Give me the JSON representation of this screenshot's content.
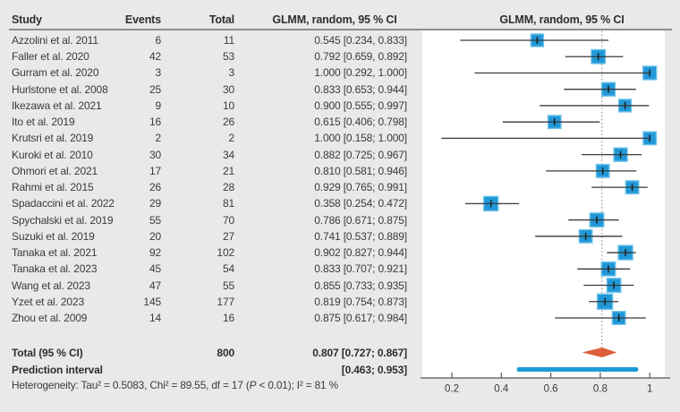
{
  "header": {
    "study": "Study",
    "events": "Events",
    "total": "Total",
    "ci": "GLMM, random, 95 % CI",
    "plot": "GLMM, random, 95 % CI"
  },
  "chart_data": {
    "type": "forest",
    "x_axis": {
      "ticks": [
        0.2,
        0.4,
        0.6,
        0.8,
        1
      ],
      "tick_labels": [
        "0.2",
        "0.4",
        "0.6",
        "0.8",
        "1"
      ],
      "range": [
        0.08,
        1.06
      ]
    },
    "reference_line": 0.807,
    "studies": [
      {
        "study": "Azzolini et al. 2011",
        "events": "6",
        "total": "11",
        "ci_text": "0.545 [0.234, 0.833]",
        "est": 0.545,
        "lo": 0.234,
        "hi": 0.833,
        "sq": 14
      },
      {
        "study": "Faller et al. 2020",
        "events": "42",
        "total": "53",
        "ci_text": "0.792 [0.659, 0.892]",
        "est": 0.792,
        "lo": 0.659,
        "hi": 0.892,
        "sq": 15.5
      },
      {
        "study": "Gurram et al. 2020",
        "events": "3",
        "total": "3",
        "ci_text": "1.000 [0.292, 1.000]",
        "est": 1.0,
        "lo": 0.292,
        "hi": 1.0,
        "sq": 15
      },
      {
        "study": "Hurlstone et al. 2008",
        "events": "25",
        "total": "30",
        "ci_text": "0.833 [0.653; 0.944]",
        "est": 0.833,
        "lo": 0.653,
        "hi": 0.944,
        "sq": 15
      },
      {
        "study": "Ikezawa et al. 2021",
        "events": "9",
        "total": "10",
        "ci_text": "0.900 [0.555; 0.997]",
        "est": 0.9,
        "lo": 0.555,
        "hi": 0.997,
        "sq": 14
      },
      {
        "study": "Ito et al. 2019",
        "events": "16",
        "total": "26",
        "ci_text": "0.615 [0.406; 0.798]",
        "est": 0.615,
        "lo": 0.406,
        "hi": 0.798,
        "sq": 14.5
      },
      {
        "study": "Krutsri et al. 2019",
        "events": "2",
        "total": "2",
        "ci_text": "1.000 [0.158; 1.000]",
        "est": 1.0,
        "lo": 0.158,
        "hi": 1.0,
        "sq": 14.5
      },
      {
        "study": "Kuroki et al. 2010",
        "events": "30",
        "total": "34",
        "ci_text": "0.882 [0.725; 0.967]",
        "est": 0.882,
        "lo": 0.725,
        "hi": 0.967,
        "sq": 15
      },
      {
        "study": "Ohmori et al. 2021",
        "events": "17",
        "total": "21",
        "ci_text": "0.810 [0.581; 0.946]",
        "est": 0.81,
        "lo": 0.581,
        "hi": 0.946,
        "sq": 14.5
      },
      {
        "study": "Rahmi et al. 2015",
        "events": "26",
        "total": "28",
        "ci_text": "0.929 [0.765; 0.991]",
        "est": 0.929,
        "lo": 0.765,
        "hi": 0.991,
        "sq": 14.5
      },
      {
        "study": "Spadaccini et al. 2022",
        "events": "29",
        "total": "81",
        "ci_text": "0.358 [0.254; 0.472]",
        "est": 0.358,
        "lo": 0.254,
        "hi": 0.472,
        "sq": 16
      },
      {
        "study": "Spychalski et al. 2019",
        "events": "55",
        "total": "70",
        "ci_text": "0.786 [0.671; 0.875]",
        "est": 0.786,
        "lo": 0.671,
        "hi": 0.875,
        "sq": 15.5
      },
      {
        "study": "Suzuki et al. 2019",
        "events": "20",
        "total": "27",
        "ci_text": "0.741 [0.537; 0.889]",
        "est": 0.741,
        "lo": 0.537,
        "hi": 0.889,
        "sq": 14.5
      },
      {
        "study": "Tanaka et al. 2021",
        "events": "92",
        "total": "102",
        "ci_text": "0.902 [0.827; 0.944]",
        "est": 0.902,
        "lo": 0.827,
        "hi": 0.944,
        "sq": 16
      },
      {
        "study": "Tanaka et al. 2023",
        "events": "45",
        "total": "54",
        "ci_text": "0.833 [0.707; 0.921]",
        "est": 0.833,
        "lo": 0.707,
        "hi": 0.921,
        "sq": 15.5
      },
      {
        "study": "Wang et al. 2023",
        "events": "47",
        "total": "55",
        "ci_text": "0.855 [0.733; 0.935]",
        "est": 0.855,
        "lo": 0.733,
        "hi": 0.935,
        "sq": 15.5
      },
      {
        "study": "Yzet et al. 2023",
        "events": "145",
        "total": "177",
        "ci_text": "0.819 [0.754; 0.873]",
        "est": 0.819,
        "lo": 0.754,
        "hi": 0.873,
        "sq": 17
      },
      {
        "study": "Zhou et al. 2009",
        "events": "14",
        "total": "16",
        "ci_text": "0.875 [0.617; 0.984]",
        "est": 0.875,
        "lo": 0.617,
        "hi": 0.984,
        "sq": 14.5
      }
    ],
    "total_row": {
      "label": "Total (95 % CI)",
      "total": "800",
      "ci_text": "0.807 [0.727; 0.867]",
      "est": 0.807,
      "lo": 0.727,
      "hi": 0.867
    },
    "prediction_row": {
      "label": "Prediction interval",
      "ci_text": "[0.463; 0.953]",
      "lo": 0.463,
      "hi": 0.953
    },
    "heterogeneity": {
      "prefix": "Heterogeneity: Tau² = 0.5083, Chi² = 89.55, df = 17 (",
      "p": "P",
      "suffix": " < 0.01); I² = 81 %"
    }
  },
  "colors": {
    "background": "#e9e9e8",
    "panel": "#ffffff",
    "square": "#2098d8",
    "square_border": "#6fc2ea",
    "diamond": "#dc5e3a",
    "prediction_bar": "#1b9cd9",
    "ci_line": "#3a3a3a",
    "estimate_tick": "#1a1a1a",
    "rule": "#8d8d8d",
    "axis": "#555555",
    "ref_line": "#808080",
    "text": "#3a3a3a"
  }
}
